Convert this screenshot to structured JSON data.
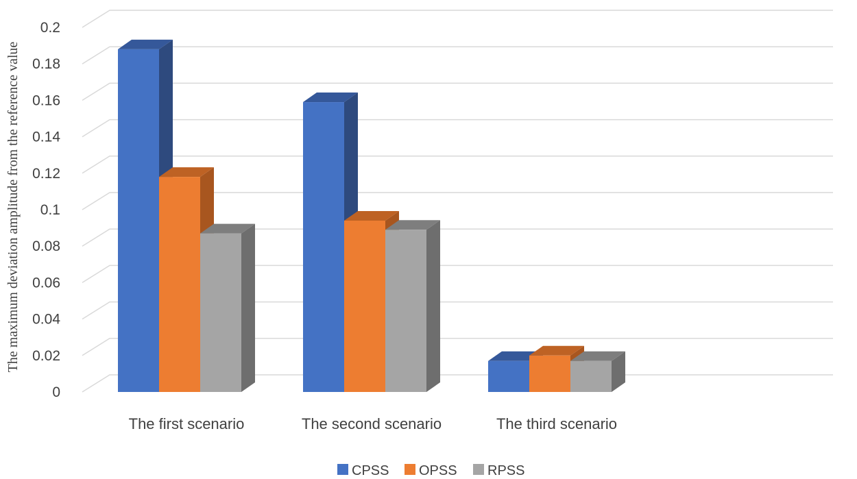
{
  "chart_data": {
    "type": "bar",
    "categories": [
      "The first scenario",
      "The second scenario",
      "The third scenario"
    ],
    "series": [
      {
        "name": "CPSS",
        "values": [
          0.188,
          0.159,
          0.017
        ],
        "color": "#4472C4",
        "side_color": "#2E4A7E",
        "top_color": "#35589A"
      },
      {
        "name": "OPSS",
        "values": [
          0.118,
          0.094,
          0.02
        ],
        "color": "#ED7D31",
        "side_color": "#A8561F",
        "top_color": "#BE6224"
      },
      {
        "name": "RPSS",
        "values": [
          0.087,
          0.089,
          0.017
        ],
        "color": "#A5A5A5",
        "side_color": "#6E6E6E",
        "top_color": "#7E7E7E"
      }
    ],
    "ylim": [
      0,
      0.2
    ],
    "yticks": [
      "0",
      "0.02",
      "0.04",
      "0.06",
      "0.08",
      "0.1",
      "0.12",
      "0.14",
      "0.16",
      "0.18",
      "0.2"
    ],
    "ylabel": "The maximum deviation amplitude from the reference value",
    "xlabel": "",
    "title": "",
    "grid": true,
    "legend_position": "bottom",
    "style": "3d-clustered-column"
  }
}
